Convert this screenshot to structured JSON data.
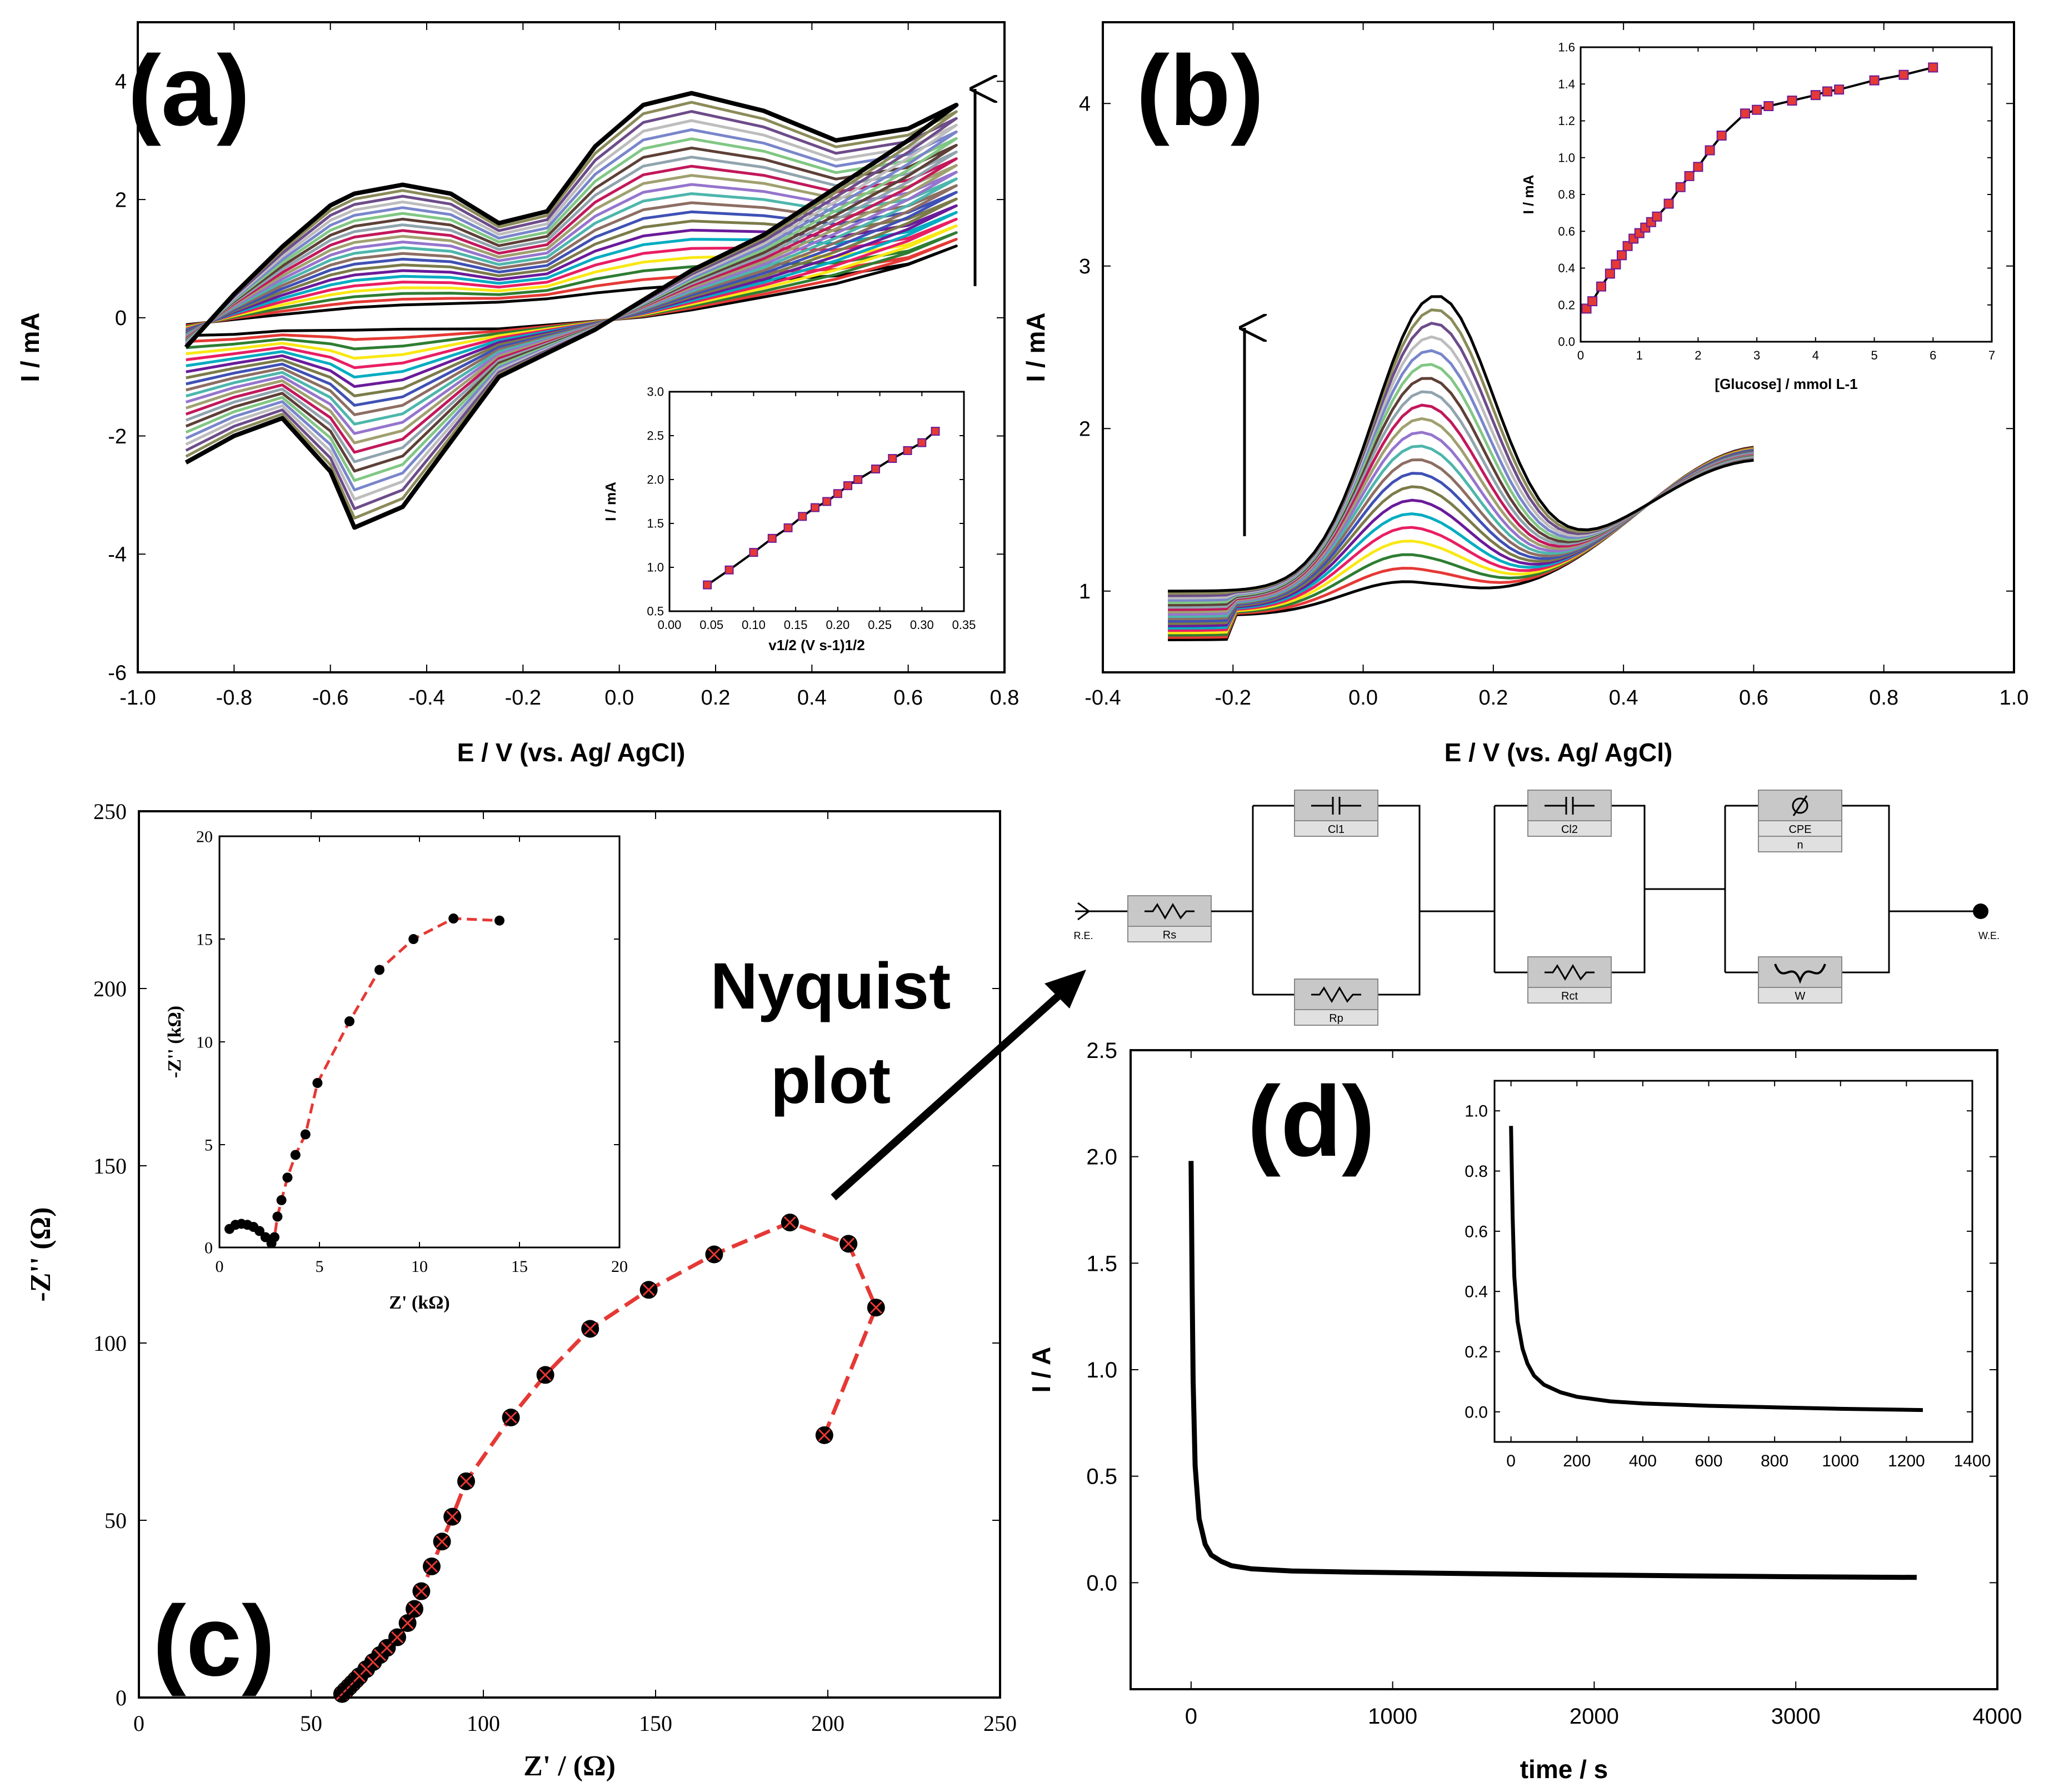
{
  "chart_data": [
    {
      "panel": "(a)",
      "type": "line",
      "xlabel": "E / V (vs. Ag/ AgCl)",
      "ylabel": "I / mA",
      "xlim": [
        -1.0,
        0.8
      ],
      "ylim": [
        -6,
        5
      ],
      "xticks": [
        "-1.0",
        "-0.8",
        "-0.6",
        "-0.4",
        "-0.2",
        "0.0",
        "0.2",
        "0.4",
        "0.6",
        "0.8"
      ],
      "yticks": [
        "-6",
        "-4",
        "-2",
        "0",
        "2",
        "4"
      ],
      "annotation": "arrow pointing up (increasing scan rate)",
      "series_count": 22,
      "curve_min": {
        "x": [
          -0.9,
          -0.55,
          -0.4,
          0.15,
          0.7
        ],
        "y_outer": [
          -2.45,
          -3.6,
          -2.2,
          3.8,
          3.6
        ],
        "y_inner": [
          -0.2,
          -0.1,
          0.15,
          0.5,
          1.1
        ]
      },
      "colors": [
        "#000000",
        "#e53935",
        "#2e7d32",
        "#f9e814",
        "#e91e63",
        "#00acc1",
        "#6a1b9a",
        "#7b7b4a",
        "#3f51b5",
        "#8d6e63",
        "#4db6ac",
        "#9575cd",
        "#a0a070",
        "#c2185b",
        "#90a4ae",
        "#5d4037",
        "#81c784",
        "#7986cb",
        "#bdbdbd",
        "#6d4c8a",
        "#8b8b5a",
        "#000000"
      ],
      "inset": {
        "type": "scatter",
        "xlabel": "v1/2 (V s-1)1/2",
        "ylabel": "I / mA",
        "xlim": [
          0.0,
          0.35
        ],
        "ylim": [
          0.5,
          3.0
        ],
        "xticks": [
          "0.00",
          "0.05",
          "0.10",
          "0.15",
          "0.20",
          "0.25",
          "0.30",
          "0.35"
        ],
        "yticks": [
          "0.5",
          "1.0",
          "1.5",
          "2.0",
          "2.5",
          "3.0"
        ],
        "x": [
          0.045,
          0.071,
          0.1,
          0.122,
          0.141,
          0.158,
          0.173,
          0.187,
          0.2,
          0.212,
          0.224,
          0.245,
          0.265,
          0.283,
          0.3,
          0.316
        ],
        "y": [
          0.8,
          0.97,
          1.17,
          1.33,
          1.45,
          1.58,
          1.68,
          1.75,
          1.84,
          1.93,
          2.0,
          2.12,
          2.24,
          2.33,
          2.42,
          2.55
        ]
      }
    },
    {
      "panel": "(b)",
      "type": "line",
      "xlabel": "E / V (vs. Ag/ AgCl)",
      "ylabel": "I / mA",
      "xlim": [
        -0.4,
        1.0
      ],
      "ylim": [
        0.5,
        4.5
      ],
      "xticks": [
        "-0.4",
        "-0.2",
        "0.0",
        "0.2",
        "0.4",
        "0.6",
        "0.8",
        "1.0"
      ],
      "yticks": [
        "1",
        "2",
        "3",
        "4"
      ],
      "annotation": "arrow pointing up (increasing glucose)",
      "series_count": 22,
      "curve_range": {
        "x": [
          -0.3,
          0.6
        ],
        "peak_min": 1.2,
        "peak_max": 2.8
      },
      "inset": {
        "type": "scatter",
        "xlabel": "[Glucose] / mmol L-1",
        "ylabel": "I / mA",
        "xlim": [
          0,
          7
        ],
        "ylim": [
          0.0,
          1.6
        ],
        "xticks": [
          "0",
          "1",
          "2",
          "3",
          "4",
          "5",
          "6",
          "7"
        ],
        "yticks": [
          "0.0",
          "0.2",
          "0.4",
          "0.6",
          "0.8",
          "1.0",
          "1.2",
          "1.4",
          "1.6"
        ],
        "x": [
          0.1,
          0.2,
          0.35,
          0.5,
          0.6,
          0.7,
          0.8,
          0.9,
          1.0,
          1.1,
          1.2,
          1.3,
          1.5,
          1.7,
          1.85,
          2.0,
          2.2,
          2.4,
          2.8,
          3.0,
          3.2,
          3.6,
          4.0,
          4.2,
          4.4,
          5.0,
          5.5,
          6.0
        ],
        "y": [
          0.18,
          0.22,
          0.3,
          0.37,
          0.42,
          0.47,
          0.52,
          0.56,
          0.59,
          0.62,
          0.65,
          0.68,
          0.75,
          0.84,
          0.9,
          0.95,
          1.04,
          1.12,
          1.24,
          1.26,
          1.28,
          1.31,
          1.34,
          1.36,
          1.37,
          1.42,
          1.45,
          1.49
        ]
      }
    },
    {
      "panel": "(c)",
      "type": "scatter",
      "xlabel": "Z' / (Ω)",
      "ylabel": "-Z'' (Ω)",
      "xlim": [
        0,
        250
      ],
      "ylim": [
        0,
        250
      ],
      "xticks": [
        "0",
        "50",
        "100",
        "150",
        "200",
        "250"
      ],
      "yticks": [
        "0",
        "50",
        "100",
        "150",
        "200",
        "250"
      ],
      "annotation_text": [
        "Nyquist",
        "plot"
      ],
      "series": [
        {
          "x": [
            59,
            60,
            61,
            62,
            63,
            64,
            66,
            68,
            70,
            72,
            75,
            78,
            80,
            82,
            85,
            88,
            91,
            95,
            108,
            118,
            131,
            148,
            167,
            189,
            206,
            214,
            199
          ],
          "y": [
            1,
            2,
            3,
            4,
            5,
            6,
            8,
            10,
            12,
            14,
            17,
            21,
            25,
            30,
            37,
            44,
            51,
            61,
            79,
            91,
            104,
            115,
            125,
            134,
            128,
            110,
            74
          ]
        }
      ],
      "inset": {
        "type": "scatter",
        "xlabel": "Z' (kΩ)",
        "ylabel": "-Z'' (kΩ)",
        "xlim": [
          0,
          20
        ],
        "ylim": [
          0,
          20
        ],
        "xticks": [
          "0",
          "5",
          "10",
          "15",
          "20"
        ],
        "yticks": [
          "0",
          "5",
          "10",
          "15",
          "20"
        ],
        "x": [
          0.5,
          0.8,
          1.1,
          1.4,
          1.7,
          2.0,
          2.3,
          2.6,
          2.75,
          2.9,
          3.1,
          3.4,
          3.8,
          4.3,
          4.9,
          6.5,
          8.0,
          9.7,
          11.7,
          14.0
        ],
        "y": [
          0.9,
          1.1,
          1.15,
          1.1,
          1.0,
          0.8,
          0.5,
          0.2,
          0.5,
          1.5,
          2.3,
          3.4,
          4.5,
          5.5,
          8.0,
          11.0,
          13.5,
          15.0,
          16.0,
          15.9
        ]
      }
    },
    {
      "panel": "(d)",
      "type": "line",
      "xlabel": "time / s",
      "ylabel": "I / A",
      "xlim": [
        -300,
        4000
      ],
      "ylim": [
        -0.5,
        2.5
      ],
      "xticks": [
        "0",
        "1000",
        "2000",
        "3000",
        "4000"
      ],
      "yticks": [
        "0.0",
        "0.5",
        "1.0",
        "1.5",
        "2.0",
        "2.5"
      ],
      "x": [
        0,
        5,
        10,
        20,
        40,
        70,
        100,
        150,
        200,
        300,
        500,
        800,
        1200,
        1800,
        2500,
        3000,
        3600
      ],
      "y": [
        1.98,
        1.4,
        0.95,
        0.55,
        0.3,
        0.18,
        0.13,
        0.1,
        0.08,
        0.065,
        0.055,
        0.05,
        0.045,
        0.038,
        0.032,
        0.028,
        0.025
      ],
      "inset": {
        "type": "line",
        "xlim": [
          -50,
          1400
        ],
        "ylim": [
          -0.1,
          1.1
        ],
        "xticks": [
          "0",
          "200",
          "400",
          "600",
          "800",
          "1000",
          "1200",
          "1400"
        ],
        "yticks": [
          "0.0",
          "0.2",
          "0.4",
          "0.6",
          "0.8",
          "1.0"
        ],
        "x": [
          0,
          5,
          10,
          20,
          35,
          50,
          70,
          100,
          150,
          200,
          300,
          400,
          600,
          800,
          1000,
          1250
        ],
        "y": [
          0.95,
          0.65,
          0.45,
          0.3,
          0.21,
          0.16,
          0.12,
          0.09,
          0.065,
          0.05,
          0.035,
          0.028,
          0.02,
          0.015,
          0.01,
          0.006
        ]
      }
    }
  ],
  "circuit": {
    "labels": [
      "R.E.",
      "Rs",
      "Cl1",
      "Rp",
      "Cl2",
      "Rct",
      "CPE",
      "n",
      "W",
      "W.E."
    ]
  }
}
